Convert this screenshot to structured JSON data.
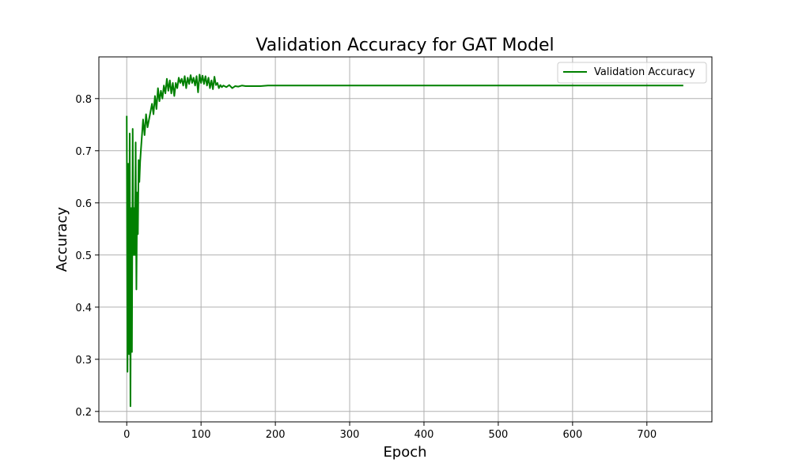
{
  "chart_data": {
    "type": "line",
    "title": "Validation Accuracy for GAT Model",
    "xlabel": "Epoch",
    "ylabel": "Accuracy",
    "xlim": [
      -37.5,
      787.5
    ],
    "ylim": [
      0.18,
      0.88
    ],
    "xticks": [
      0,
      100,
      200,
      300,
      400,
      500,
      600,
      700
    ],
    "yticks": [
      0.2,
      0.3,
      0.4,
      0.5,
      0.6,
      0.7,
      0.8
    ],
    "grid": true,
    "legend_position": "top-right",
    "series": [
      {
        "name": "Validation Accuracy",
        "color": "#008000",
        "x": [
          0,
          1,
          2,
          3,
          4,
          5,
          6,
          7,
          8,
          9,
          10,
          11,
          12,
          13,
          14,
          15,
          16,
          17,
          18,
          19,
          20,
          22,
          24,
          26,
          28,
          30,
          32,
          34,
          36,
          38,
          40,
          42,
          44,
          46,
          48,
          50,
          52,
          54,
          56,
          58,
          60,
          62,
          64,
          66,
          68,
          70,
          72,
          74,
          76,
          78,
          80,
          82,
          84,
          86,
          88,
          90,
          92,
          94,
          96,
          98,
          100,
          102,
          104,
          106,
          108,
          110,
          112,
          114,
          116,
          118,
          120,
          122,
          124,
          126,
          128,
          130,
          134,
          138,
          142,
          146,
          150,
          155,
          160,
          170,
          180,
          190,
          200,
          250,
          300,
          400,
          500,
          600,
          700,
          749
        ],
        "values": [
          0.767,
          0.276,
          0.675,
          0.31,
          0.733,
          0.21,
          0.59,
          0.314,
          0.742,
          0.5,
          0.59,
          0.5,
          0.716,
          0.434,
          0.62,
          0.54,
          0.682,
          0.64,
          0.678,
          0.7,
          0.72,
          0.76,
          0.73,
          0.77,
          0.745,
          0.76,
          0.775,
          0.79,
          0.77,
          0.805,
          0.78,
          0.82,
          0.795,
          0.815,
          0.8,
          0.825,
          0.81,
          0.838,
          0.815,
          0.835,
          0.81,
          0.83,
          0.805,
          0.83,
          0.82,
          0.84,
          0.83,
          0.838,
          0.825,
          0.843,
          0.82,
          0.84,
          0.828,
          0.845,
          0.83,
          0.84,
          0.825,
          0.843,
          0.812,
          0.846,
          0.83,
          0.844,
          0.828,
          0.843,
          0.825,
          0.84,
          0.82,
          0.835,
          0.818,
          0.842,
          0.826,
          0.83,
          0.82,
          0.826,
          0.822,
          0.825,
          0.822,
          0.826,
          0.82,
          0.824,
          0.823,
          0.825,
          0.824,
          0.824,
          0.824,
          0.825,
          0.825,
          0.825,
          0.825,
          0.825,
          0.825,
          0.825,
          0.825,
          0.825
        ]
      }
    ]
  }
}
